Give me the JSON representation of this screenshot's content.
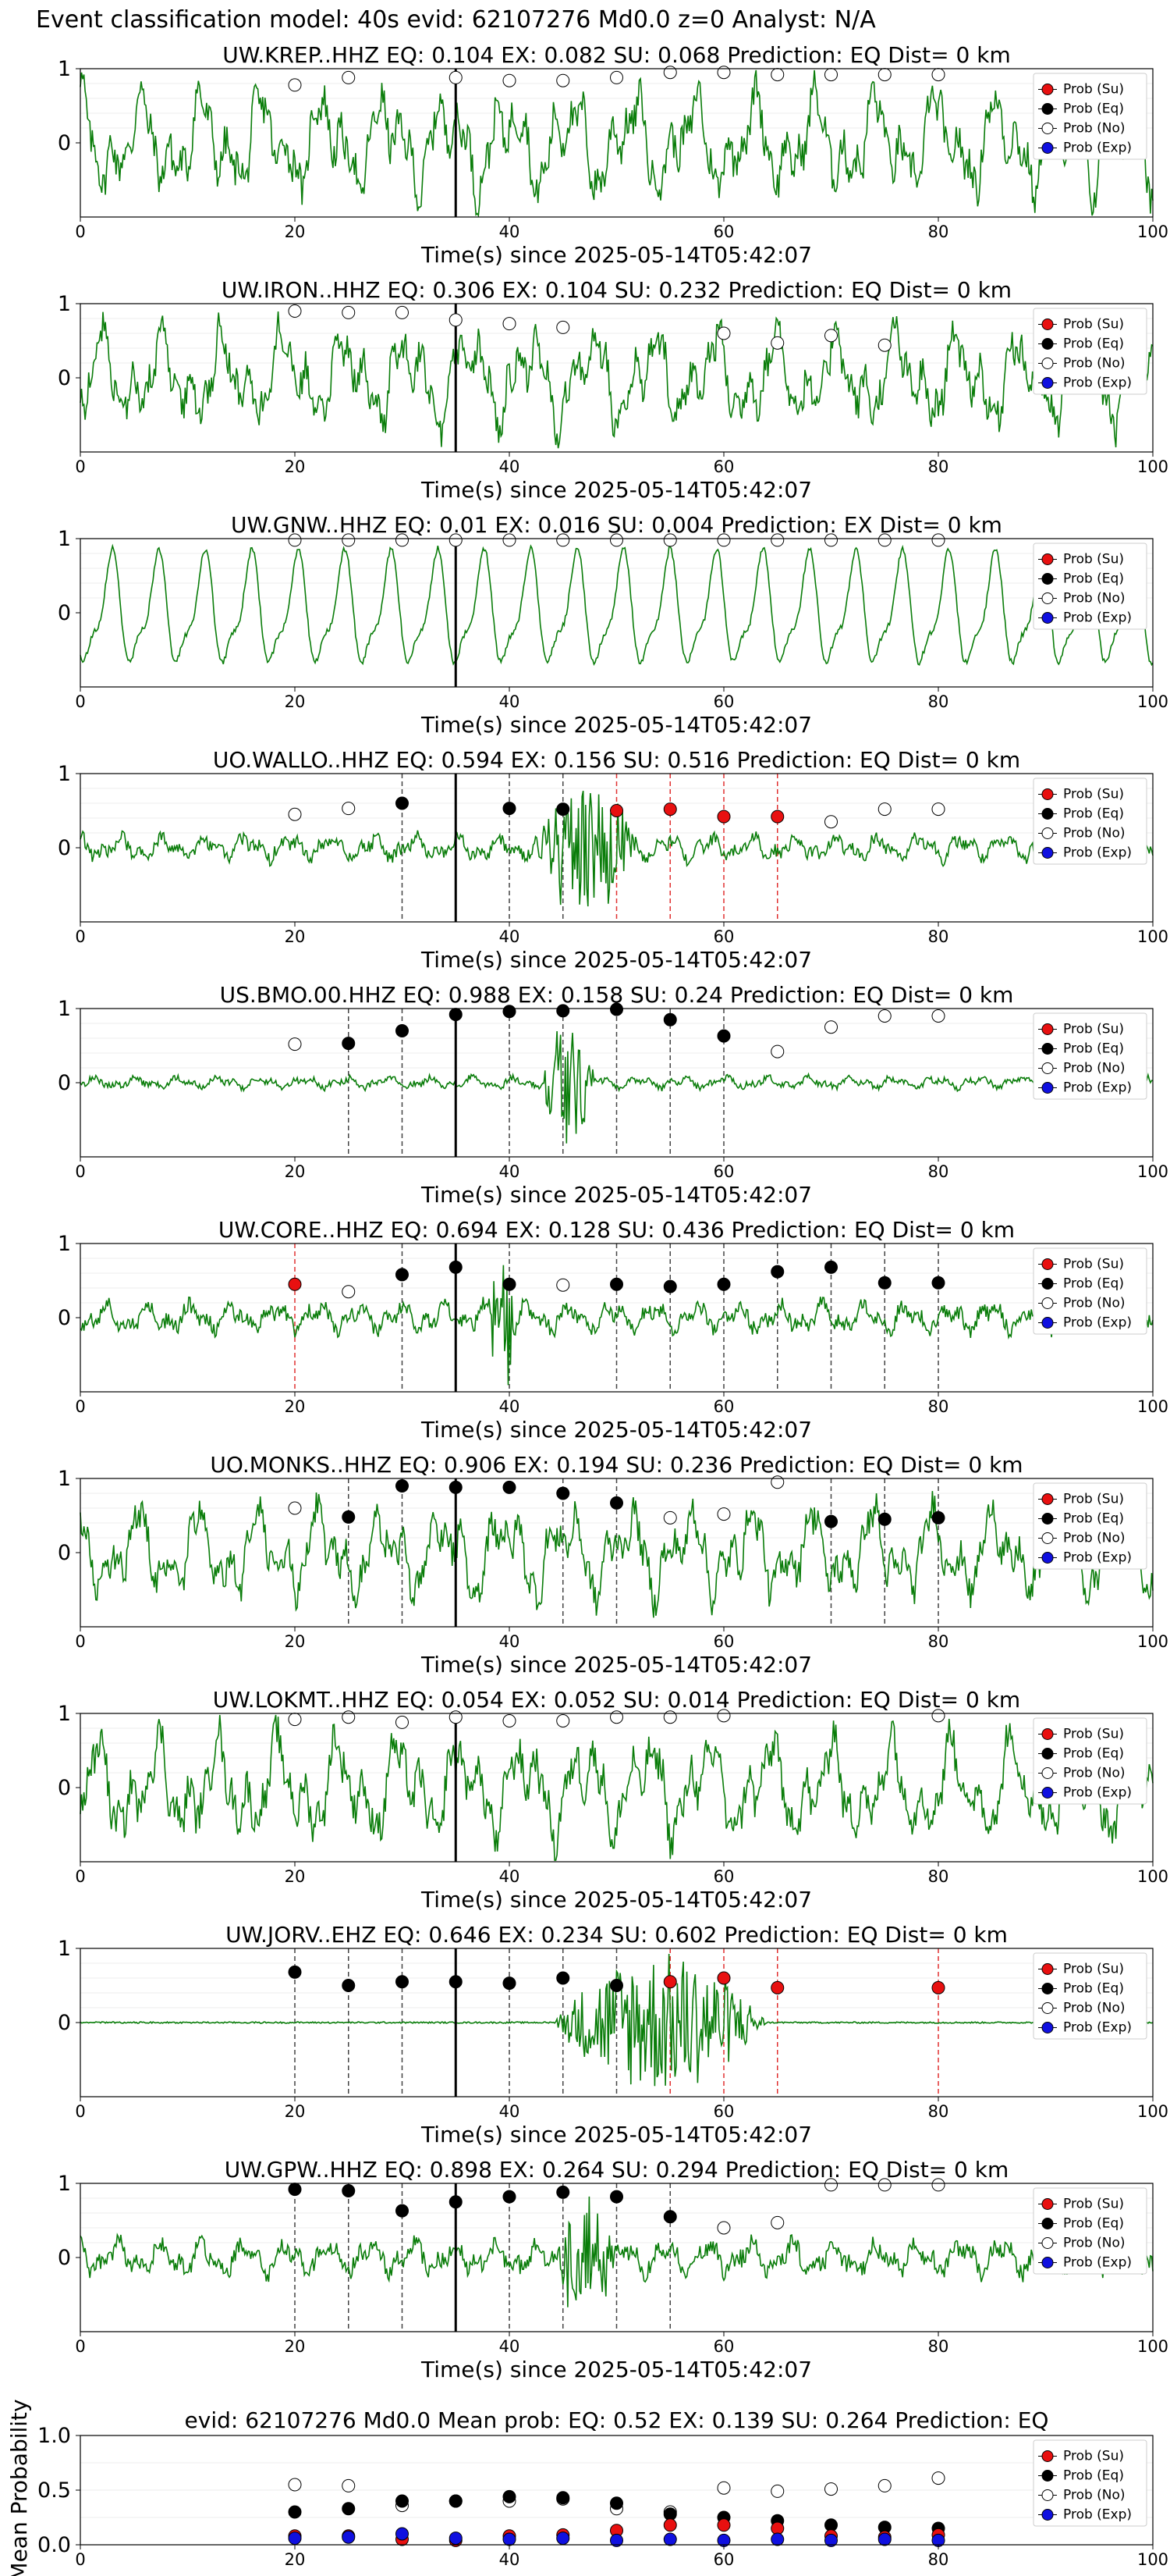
{
  "figure": {
    "suptitle": "Event classification model: 40s evid: 62107276 Md0.0 z=0 Analyst: N/A",
    "xlabel": "Time(s) since 2025-05-14T05:42:07",
    "legend": [
      "Prob (Su)",
      "Prob (Eq)",
      "Prob (No)",
      "Prob (Exp)"
    ],
    "colors": {
      "su": "#e81010",
      "eq": "#000000",
      "no": "#ffffff",
      "exp": "#1010e0",
      "trace": "#0a7d0a"
    },
    "x_ticks": [
      "0",
      "20",
      "40",
      "60",
      "80",
      "100"
    ],
    "y_ticks_station": [
      "1",
      "0"
    ],
    "y_ticks_mean": [
      "1.0",
      "0.5",
      "0.0"
    ]
  },
  "chart_data": [
    {
      "type": "line",
      "station": "UW.KREP..HHZ",
      "title": "UW.KREP..HHZ   EQ: 0.104   EX: 0.082   SU: 0.068   Prediction: EQ    Dist= 0 km",
      "xlim": [
        0,
        100
      ],
      "arrival": 35,
      "amp": 0.9,
      "style": "broad",
      "burst": null,
      "probs": {
        "no": [
          [
            20,
            0.78
          ],
          [
            25,
            0.88
          ],
          [
            35,
            0.88
          ],
          [
            40,
            0.84
          ],
          [
            45,
            0.84
          ],
          [
            50,
            0.88
          ],
          [
            55,
            0.95
          ],
          [
            60,
            0.95
          ],
          [
            65,
            0.92
          ],
          [
            70,
            0.92
          ],
          [
            75,
            0.92
          ],
          [
            80,
            0.92
          ]
        ]
      },
      "dashed": []
    },
    {
      "type": "line",
      "station": "UW.IRON..HHZ",
      "title": "UW.IRON..HHZ   EQ: 0.306   EX: 0.104   SU: 0.232    Prediction: EQ    Dist= 0 km",
      "xlim": [
        0,
        100
      ],
      "arrival": 35,
      "amp": 0.85,
      "style": "broad",
      "burst": null,
      "probs": {
        "no": [
          [
            20,
            0.9
          ],
          [
            25,
            0.88
          ],
          [
            30,
            0.88
          ],
          [
            35,
            0.78
          ],
          [
            40,
            0.73
          ],
          [
            45,
            0.68
          ],
          [
            60,
            0.6
          ],
          [
            65,
            0.47
          ],
          [
            70,
            0.57
          ],
          [
            75,
            0.44
          ]
        ]
      },
      "dashed": []
    },
    {
      "type": "line",
      "station": "UW.GNW..HHZ",
      "title": "UW.GNW..HHZ   EQ: 0.01  EX: 0.016  SU: 0.004   Prediction: EX    Dist= 0 km",
      "xlim": [
        0,
        100
      ],
      "arrival": 35,
      "amp": 0.95,
      "style": "oscillating",
      "burst": null,
      "probs": {
        "no": [
          [
            20,
            0.98
          ],
          [
            25,
            0.98
          ],
          [
            30,
            0.98
          ],
          [
            35,
            0.98
          ],
          [
            40,
            0.98
          ],
          [
            45,
            0.98
          ],
          [
            50,
            0.98
          ],
          [
            55,
            0.98
          ],
          [
            60,
            0.98
          ],
          [
            65,
            0.98
          ],
          [
            70,
            0.98
          ],
          [
            75,
            0.98
          ],
          [
            80,
            0.98
          ]
        ]
      },
      "dashed": []
    },
    {
      "type": "line",
      "station": "UO.WALLO..HHZ",
      "title": "UO.WALLO..HHZ   EQ: 0.594   EX: 0.156   SU: 0.516    Prediction: EQ     Dist= 0 km",
      "xlim": [
        0,
        100
      ],
      "arrival": 35,
      "amp": 0.25,
      "style": "fine",
      "burst": [
        42,
        52,
        0.85
      ],
      "probs": {
        "no": [
          [
            20,
            0.45
          ],
          [
            25,
            0.53
          ],
          [
            70,
            0.35
          ],
          [
            75,
            0.52
          ],
          [
            80,
            0.52
          ]
        ],
        "eq": [
          [
            30,
            0.6
          ],
          [
            40,
            0.53
          ],
          [
            45,
            0.52
          ]
        ],
        "su": [
          [
            50,
            0.5
          ],
          [
            55,
            0.52
          ],
          [
            60,
            0.42
          ],
          [
            65,
            0.42
          ]
        ]
      },
      "dashed": [
        [
          30,
          "k"
        ],
        [
          40,
          "k"
        ],
        [
          45,
          "k"
        ],
        [
          50,
          "r"
        ],
        [
          55,
          "r"
        ],
        [
          60,
          "r"
        ],
        [
          65,
          "r"
        ]
      ]
    },
    {
      "type": "line",
      "station": "US.BMO.00.HHZ",
      "title": "US.BMO.00.HHZ   EQ: 0.988   EX: 0.158   SU: 0.24    Prediction: EQ    Dist= 0 km",
      "xlim": [
        0,
        100
      ],
      "arrival": 35,
      "amp": 0.12,
      "style": "fine",
      "burst": [
        43,
        48,
        0.9
      ],
      "probs": {
        "no": [
          [
            20,
            0.52
          ],
          [
            65,
            0.42
          ],
          [
            70,
            0.75
          ],
          [
            75,
            0.9
          ],
          [
            80,
            0.9
          ]
        ],
        "eq": [
          [
            25,
            0.53
          ],
          [
            30,
            0.7
          ],
          [
            35,
            0.92
          ],
          [
            40,
            0.96
          ],
          [
            45,
            0.97
          ],
          [
            50,
            0.99
          ],
          [
            55,
            0.85
          ],
          [
            60,
            0.63
          ]
        ]
      },
      "dashed": [
        [
          25,
          "k"
        ],
        [
          30,
          "k"
        ],
        [
          40,
          "k"
        ],
        [
          45,
          "k"
        ],
        [
          50,
          "k"
        ],
        [
          55,
          "k"
        ],
        [
          60,
          "k"
        ]
      ]
    },
    {
      "type": "line",
      "station": "UW.CORE..HHZ",
      "title": "UW.CORE..HHZ   EQ: 0.694   EX: 0.128   SU: 0.436    Prediction: EQ    Dist= 0 km",
      "xlim": [
        0,
        100
      ],
      "arrival": 35,
      "amp": 0.3,
      "style": "fine",
      "burst": [
        38,
        41,
        0.9
      ],
      "probs": {
        "su": [
          [
            20,
            0.45
          ]
        ],
        "no": [
          [
            25,
            0.35
          ],
          [
            45,
            0.44
          ]
        ],
        "eq": [
          [
            30,
            0.58
          ],
          [
            35,
            0.68
          ],
          [
            40,
            0.45
          ],
          [
            50,
            0.45
          ],
          [
            55,
            0.42
          ],
          [
            60,
            0.45
          ],
          [
            65,
            0.62
          ],
          [
            70,
            0.68
          ],
          [
            75,
            0.47
          ],
          [
            80,
            0.47
          ]
        ]
      },
      "dashed": [
        [
          20,
          "r"
        ],
        [
          30,
          "k"
        ],
        [
          40,
          "k"
        ],
        [
          50,
          "k"
        ],
        [
          55,
          "k"
        ],
        [
          60,
          "k"
        ],
        [
          65,
          "k"
        ],
        [
          70,
          "k"
        ],
        [
          75,
          "k"
        ],
        [
          80,
          "k"
        ]
      ]
    },
    {
      "type": "line",
      "station": "UO.MONKS..HHZ",
      "title": "UO.MONKS..HHZ   EQ: 0.906   EX: 0.194   SU: 0.236    Prediction: EQ     Dist= 0 km",
      "xlim": [
        0,
        100
      ],
      "arrival": 35,
      "amp": 0.8,
      "style": "broad",
      "burst": null,
      "probs": {
        "no": [
          [
            20,
            0.6
          ],
          [
            55,
            0.47
          ],
          [
            60,
            0.52
          ],
          [
            65,
            0.95
          ]
        ],
        "eq": [
          [
            25,
            0.48
          ],
          [
            30,
            0.9
          ],
          [
            35,
            0.88
          ],
          [
            40,
            0.88
          ],
          [
            45,
            0.8
          ],
          [
            50,
            0.67
          ],
          [
            70,
            0.42
          ],
          [
            75,
            0.45
          ],
          [
            80,
            0.47
          ]
        ]
      },
      "dashed": [
        [
          25,
          "k"
        ],
        [
          30,
          "k"
        ],
        [
          45,
          "k"
        ],
        [
          50,
          "k"
        ],
        [
          70,
          "k"
        ],
        [
          75,
          "k"
        ],
        [
          80,
          "k"
        ]
      ]
    },
    {
      "type": "line",
      "station": "UW.LOKMT..HHZ",
      "title": "UW.LOKMT..HHZ   EQ: 0.054   EX: 0.052   SU: 0.014    Prediction: EQ    Dist= 0 km",
      "xlim": [
        0,
        100
      ],
      "arrival": 35,
      "amp": 0.9,
      "style": "broad",
      "burst": null,
      "probs": {
        "no": [
          [
            20,
            0.92
          ],
          [
            25,
            0.95
          ],
          [
            30,
            0.88
          ],
          [
            35,
            0.95
          ],
          [
            40,
            0.9
          ],
          [
            45,
            0.9
          ],
          [
            50,
            0.95
          ],
          [
            55,
            0.95
          ],
          [
            60,
            0.97
          ],
          [
            80,
            0.97
          ]
        ]
      },
      "dashed": []
    },
    {
      "type": "line",
      "station": "UW.JORV..EHZ",
      "title": "UW.JORV..EHZ   EQ: 0.646   EX: 0.234   SU: 0.602    Prediction: EQ    Dist= 0 km",
      "xlim": [
        0,
        100
      ],
      "arrival": 35,
      "amp": 0.02,
      "style": "quiet",
      "burst": [
        44,
        64,
        0.95
      ],
      "probs": {
        "eq": [
          [
            20,
            0.68
          ],
          [
            25,
            0.5
          ],
          [
            30,
            0.55
          ],
          [
            35,
            0.55
          ],
          [
            40,
            0.53
          ],
          [
            45,
            0.6
          ],
          [
            50,
            0.5
          ]
        ],
        "su": [
          [
            55,
            0.55
          ],
          [
            60,
            0.6
          ],
          [
            65,
            0.47
          ],
          [
            80,
            0.47
          ]
        ]
      },
      "dashed": [
        [
          20,
          "k"
        ],
        [
          25,
          "k"
        ],
        [
          30,
          "k"
        ],
        [
          40,
          "k"
        ],
        [
          45,
          "k"
        ],
        [
          50,
          "k"
        ],
        [
          55,
          "r"
        ],
        [
          60,
          "r"
        ],
        [
          65,
          "r"
        ],
        [
          80,
          "r"
        ]
      ]
    },
    {
      "type": "line",
      "station": "UW.GPW..HHZ",
      "title": "UW.GPW..HHZ   EQ: 0.898   EX: 0.264   SU: 0.294    Prediction: EQ    Dist= 0 km",
      "xlim": [
        0,
        100
      ],
      "arrival": 35,
      "amp": 0.35,
      "style": "fine",
      "burst": [
        44,
        50,
        0.8
      ],
      "probs": {
        "eq": [
          [
            20,
            0.92
          ],
          [
            25,
            0.9
          ],
          [
            30,
            0.63
          ],
          [
            35,
            0.75
          ],
          [
            40,
            0.82
          ],
          [
            45,
            0.88
          ],
          [
            50,
            0.82
          ],
          [
            55,
            0.55
          ]
        ],
        "no": [
          [
            60,
            0.4
          ],
          [
            65,
            0.47
          ],
          [
            70,
            0.98
          ],
          [
            75,
            0.98
          ],
          [
            80,
            0.98
          ]
        ]
      },
      "dashed": [
        [
          20,
          "k"
        ],
        [
          25,
          "k"
        ],
        [
          30,
          "k"
        ],
        [
          40,
          "k"
        ],
        [
          45,
          "k"
        ],
        [
          50,
          "k"
        ],
        [
          55,
          "k"
        ]
      ]
    },
    {
      "type": "scatter",
      "station": "mean",
      "title": "evid: 62107276   Md0.0   Mean prob:   EQ: 0.52   EX: 0.139   SU: 0.264   Prediction: EQ",
      "ylabel": "Mean Probability",
      "xlim": [
        0,
        100
      ],
      "ylim": [
        0,
        1
      ],
      "x": [
        20,
        25,
        30,
        35,
        40,
        45,
        50,
        55,
        60,
        65,
        70,
        75,
        80
      ],
      "series": [
        {
          "name": "Prob (Su)",
          "values": [
            0.08,
            0.08,
            0.05,
            0.04,
            0.08,
            0.09,
            0.13,
            0.18,
            0.18,
            0.15,
            0.08,
            0.07,
            0.09
          ]
        },
        {
          "name": "Prob (Eq)",
          "values": [
            0.3,
            0.33,
            0.4,
            0.4,
            0.44,
            0.43,
            0.38,
            0.28,
            0.25,
            0.22,
            0.18,
            0.16,
            0.15
          ]
        },
        {
          "name": "Prob (No)",
          "values": [
            0.55,
            0.54,
            0.36,
            0.4,
            0.4,
            0.42,
            0.33,
            0.3,
            0.52,
            0.49,
            0.51,
            0.54,
            0.61
          ]
        },
        {
          "name": "Prob (Exp)",
          "values": [
            0.06,
            0.07,
            0.1,
            0.06,
            0.05,
            0.06,
            0.04,
            0.05,
            0.04,
            0.05,
            0.04,
            0.05,
            0.04
          ]
        }
      ]
    }
  ]
}
